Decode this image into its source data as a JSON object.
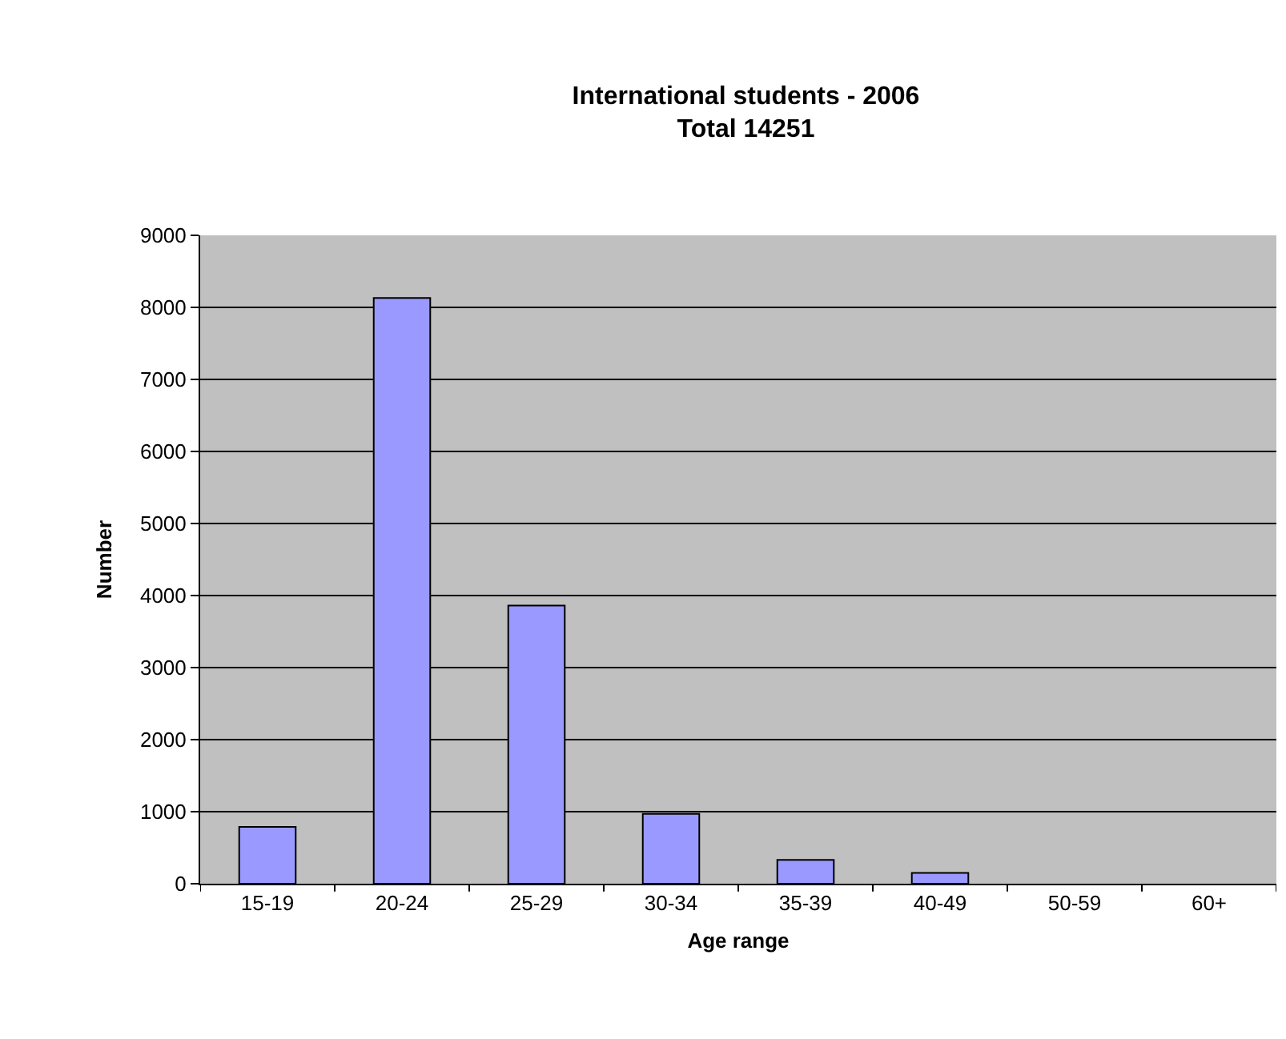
{
  "chart_data": {
    "type": "bar",
    "title": "International students - 2006",
    "subtitle": "Total 14251",
    "xlabel": "Age range",
    "ylabel": "Number",
    "categories": [
      "15-19",
      "20-24",
      "25-29",
      "30-34",
      "35-39",
      "40-49",
      "50-59",
      "60+"
    ],
    "values": [
      790,
      8130,
      3860,
      970,
      330,
      150,
      null,
      null
    ],
    "color": "#9999ff",
    "ylim": [
      0,
      9000
    ],
    "yticks": [
      0,
      1000,
      2000,
      3000,
      4000,
      5000,
      6000,
      7000,
      8000,
      9000
    ],
    "grid": "y",
    "legend": false
  }
}
